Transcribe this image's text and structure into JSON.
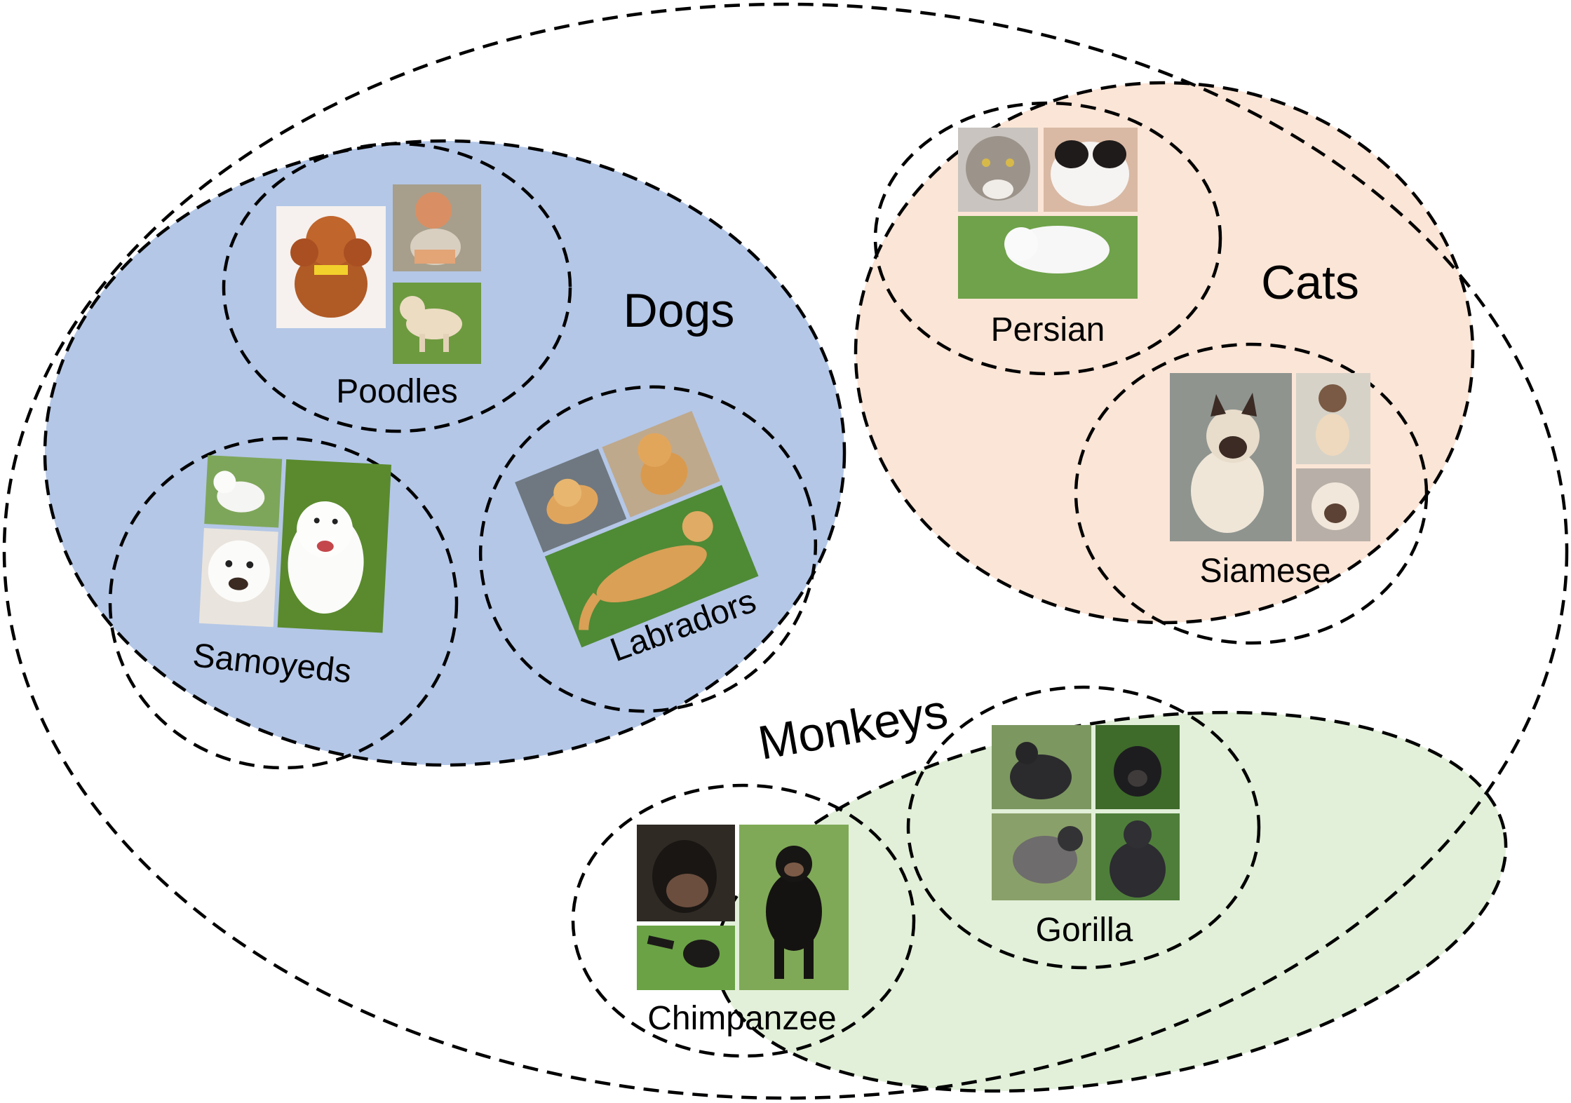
{
  "colors": {
    "dogs_fill": "#b4c7e7",
    "cats_fill": "#fbe5d6",
    "monkeys_fill": "#e2f0d9",
    "outline": "#000000"
  },
  "groups": {
    "dogs": {
      "label": "Dogs",
      "subgroups": [
        {
          "label": "Poodles",
          "photos": [
            "red toy poodle",
            "apricot poodle in vest",
            "cream poodle on grass"
          ]
        },
        {
          "label": "Samoyeds",
          "photos": [
            "white samoyed standing",
            "smiling samoyed face",
            "samoyed puppy running"
          ]
        },
        {
          "label": "Labradors",
          "photos": [
            "golden puppy in crate",
            "golden puppy sitting",
            "golden dog lying on grass"
          ]
        }
      ]
    },
    "cats": {
      "label": "Cats",
      "subgroups": [
        {
          "label": "Persian",
          "photos": [
            "grey long-hair cat",
            "black and white persian",
            "white persian walking"
          ]
        },
        {
          "label": "Siamese",
          "photos": [
            "siamese kitten portrait",
            "siamese kitten sitting",
            "siamese cat close-up"
          ]
        }
      ]
    },
    "monkeys": {
      "label": "Monkeys",
      "subgroups": [
        {
          "label": "Chimpanzee",
          "photos": [
            "bonobo face",
            "chimpanzee standing",
            "chimpanzee pointing"
          ]
        },
        {
          "label": "Gorilla",
          "photos": [
            "silverback walking",
            "gorilla in leaves",
            "gorilla side view",
            "gorilla sitting"
          ]
        }
      ]
    }
  }
}
